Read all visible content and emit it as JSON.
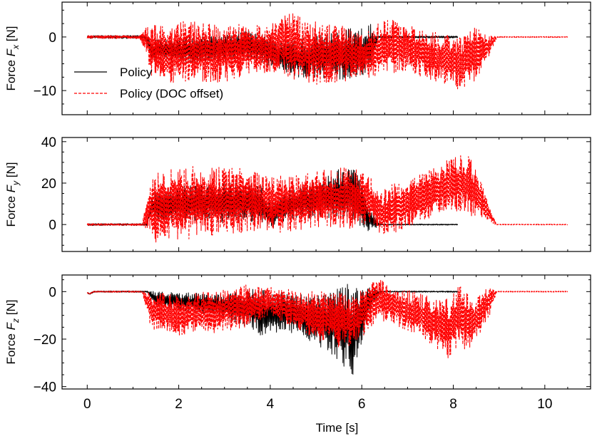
{
  "chart_data": [
    {
      "type": "line",
      "panel": "Fx",
      "ylabel": {
        "prefix": "Force ",
        "symbol": "F",
        "subscript": "x",
        "suffix": " [N]"
      },
      "ylim": [
        -14.5,
        6.5
      ],
      "yticks": [
        {
          "value": 0,
          "label": "0"
        },
        {
          "value": -10,
          "label": "−10"
        }
      ],
      "xlim": [
        -0.55,
        11.0
      ],
      "xticks": [
        0,
        2,
        4,
        6,
        8,
        10
      ],
      "legend": {
        "placement": "bottom-left"
      },
      "series": [
        {
          "name": "Policy",
          "color": "#000000",
          "style": "solid",
          "points": [
            [
              0,
              0
            ],
            [
              1.25,
              0
            ],
            [
              1.3,
              -0.5
            ],
            [
              1.4,
              -2.5
            ],
            [
              2.0,
              -2.5
            ],
            [
              3.0,
              -2.0
            ],
            [
              3.5,
              -1.5
            ],
            [
              4.0,
              -2.5
            ],
            [
              4.2,
              -3.5
            ],
            [
              4.5,
              -4.0
            ],
            [
              5.0,
              -3.5
            ],
            [
              5.5,
              -3.5
            ],
            [
              5.8,
              -3.0
            ],
            [
              6.0,
              -3.0
            ],
            [
              6.2,
              -1.5
            ],
            [
              6.35,
              0
            ],
            [
              8.1,
              0
            ]
          ],
          "amplitude": [
            [
              1.25,
              0.3
            ],
            [
              1.4,
              2.0
            ],
            [
              2.5,
              2.5
            ],
            [
              3.5,
              3.0
            ],
            [
              4.0,
              3.0
            ],
            [
              4.5,
              3.5
            ],
            [
              5.5,
              4.5
            ],
            [
              6.0,
              5.0
            ],
            [
              6.2,
              4.0
            ],
            [
              6.35,
              0.2
            ],
            [
              8.1,
              0.2
            ]
          ]
        },
        {
          "name": "Policy (DOC offset)",
          "color": "#ff0000",
          "style": "dashed",
          "points": [
            [
              0,
              0
            ],
            [
              1.15,
              0
            ],
            [
              1.3,
              -0.5
            ],
            [
              1.4,
              -2.5
            ],
            [
              2.0,
              -3.0
            ],
            [
              3.0,
              -3.0
            ],
            [
              3.5,
              -2.5
            ],
            [
              4.0,
              -2.0
            ],
            [
              4.2,
              -1.5
            ],
            [
              4.5,
              -2.0
            ],
            [
              5.0,
              -3.0
            ],
            [
              5.5,
              -3.0
            ],
            [
              6.0,
              -3.5
            ],
            [
              6.3,
              -3.0
            ],
            [
              6.5,
              -1.5
            ],
            [
              7.0,
              -2.0
            ],
            [
              7.5,
              -3.5
            ],
            [
              8.0,
              -4.5
            ],
            [
              8.2,
              -5.0
            ],
            [
              8.5,
              -3.0
            ],
            [
              8.8,
              -1.5
            ],
            [
              8.95,
              0
            ],
            [
              10.5,
              0
            ]
          ],
          "amplitude": [
            [
              1.15,
              0.3
            ],
            [
              1.4,
              5.0
            ],
            [
              2.0,
              6.0
            ],
            [
              3.0,
              5.5
            ],
            [
              4.0,
              4.5
            ],
            [
              4.5,
              6.5
            ],
            [
              5.5,
              5.5
            ],
            [
              6.0,
              4.0
            ],
            [
              6.5,
              5.5
            ],
            [
              7.0,
              4.5
            ],
            [
              8.0,
              5.0
            ],
            [
              8.5,
              5.0
            ],
            [
              8.95,
              0.1
            ],
            [
              10.5,
              0.1
            ]
          ]
        }
      ]
    },
    {
      "type": "line",
      "panel": "Fy",
      "ylabel": {
        "prefix": "Force ",
        "symbol": "F",
        "subscript": "y",
        "suffix": " [N]"
      },
      "ylim": [
        -13,
        42
      ],
      "yticks": [
        {
          "value": 0,
          "label": "0"
        },
        {
          "value": 20,
          "label": "20"
        },
        {
          "value": 40,
          "label": "40"
        }
      ],
      "xlim": [
        -0.55,
        11.0
      ],
      "xticks": [
        0,
        2,
        4,
        6,
        8,
        10
      ],
      "series": [
        {
          "name": "Policy",
          "color": "#000000",
          "style": "solid",
          "points": [
            [
              0,
              0
            ],
            [
              1.3,
              0
            ],
            [
              1.4,
              9
            ],
            [
              2.0,
              10
            ],
            [
              3.0,
              11
            ],
            [
              3.8,
              10
            ],
            [
              4.0,
              4
            ],
            [
              4.3,
              9
            ],
            [
              5.0,
              12
            ],
            [
              5.5,
              15
            ],
            [
              5.9,
              14
            ],
            [
              6.1,
              4
            ],
            [
              6.3,
              1
            ],
            [
              6.4,
              0
            ],
            [
              8.1,
              0
            ]
          ],
          "amplitude": [
            [
              1.3,
              0.5
            ],
            [
              1.5,
              8
            ],
            [
              3.0,
              10
            ],
            [
              3.8,
              9
            ],
            [
              4.2,
              7
            ],
            [
              5.0,
              9
            ],
            [
              5.9,
              14
            ],
            [
              6.2,
              5
            ],
            [
              6.4,
              0.3
            ],
            [
              8.1,
              0.3
            ]
          ]
        },
        {
          "name": "Policy (DOC offset)",
          "color": "#ff0000",
          "style": "dashed",
          "points": [
            [
              0,
              0
            ],
            [
              1.2,
              0
            ],
            [
              1.4,
              9
            ],
            [
              2.0,
              10
            ],
            [
              3.0,
              12
            ],
            [
              3.8,
              11
            ],
            [
              4.3,
              10
            ],
            [
              5.0,
              12
            ],
            [
              5.7,
              13
            ],
            [
              6.2,
              12
            ],
            [
              6.4,
              5
            ],
            [
              6.7,
              8
            ],
            [
              7.0,
              10
            ],
            [
              7.5,
              15
            ],
            [
              8.0,
              20
            ],
            [
              8.3,
              20
            ],
            [
              8.6,
              12
            ],
            [
              8.85,
              3
            ],
            [
              8.95,
              0
            ],
            [
              10.5,
              0
            ]
          ],
          "amplitude": [
            [
              1.2,
              0.5
            ],
            [
              1.35,
              10
            ],
            [
              1.5,
              18
            ],
            [
              3.0,
              17
            ],
            [
              3.8,
              14
            ],
            [
              4.2,
              14
            ],
            [
              5.0,
              14
            ],
            [
              5.8,
              15
            ],
            [
              6.3,
              10
            ],
            [
              6.6,
              12
            ],
            [
              7.5,
              12
            ],
            [
              8.1,
              14
            ],
            [
              8.4,
              14
            ],
            [
              8.8,
              4
            ],
            [
              8.95,
              0.2
            ],
            [
              10.5,
              0.2
            ]
          ]
        }
      ]
    },
    {
      "type": "line",
      "panel": "Fz",
      "ylabel": {
        "prefix": "Force ",
        "symbol": "F",
        "subscript": "z",
        "suffix": " [N]"
      },
      "xlabel": "Time [s]",
      "ylim": [
        -41,
        7
      ],
      "yticks": [
        {
          "value": 0,
          "label": "0"
        },
        {
          "value": -20,
          "label": "−20"
        },
        {
          "value": -40,
          "label": "−40"
        }
      ],
      "xlim": [
        -0.55,
        11.0
      ],
      "xticks": [
        {
          "value": 0,
          "label": "0"
        },
        {
          "value": 2,
          "label": "2"
        },
        {
          "value": 4,
          "label": "4"
        },
        {
          "value": 6,
          "label": "6"
        },
        {
          "value": 8,
          "label": "8"
        },
        {
          "value": 10,
          "label": "10"
        }
      ],
      "series": [
        {
          "name": "Policy",
          "color": "#000000",
          "style": "solid",
          "points": [
            [
              0,
              -0.5
            ],
            [
              0.05,
              -1
            ],
            [
              0.15,
              0
            ],
            [
              1.3,
              0
            ],
            [
              1.5,
              -3
            ],
            [
              2.5,
              -5
            ],
            [
              3.5,
              -7
            ],
            [
              4.0,
              -10
            ],
            [
              4.3,
              -8
            ],
            [
              5.0,
              -12
            ],
            [
              5.5,
              -14
            ],
            [
              5.8,
              -16
            ],
            [
              6.0,
              -10
            ],
            [
              6.2,
              -3
            ],
            [
              6.4,
              0
            ],
            [
              8.1,
              0
            ]
          ],
          "amplitude": [
            [
              1.3,
              0.3
            ],
            [
              1.5,
              3
            ],
            [
              3.0,
              5
            ],
            [
              3.8,
              10
            ],
            [
              4.2,
              8
            ],
            [
              5.0,
              10
            ],
            [
              5.8,
              20
            ],
            [
              6.1,
              8
            ],
            [
              6.4,
              0.3
            ],
            [
              8.1,
              0.3
            ]
          ]
        },
        {
          "name": "Policy (DOC offset)",
          "color": "#ff0000",
          "style": "dashed",
          "points": [
            [
              0,
              -0.5
            ],
            [
              0.05,
              -1
            ],
            [
              0.15,
              0
            ],
            [
              1.2,
              0
            ],
            [
              1.4,
              -8
            ],
            [
              2.0,
              -10
            ],
            [
              3.0,
              -8
            ],
            [
              4.0,
              -4
            ],
            [
              4.3,
              -6
            ],
            [
              5.0,
              -10
            ],
            [
              5.7,
              -12
            ],
            [
              6.1,
              -8
            ],
            [
              6.3,
              -4
            ],
            [
              6.5,
              -4
            ],
            [
              7.0,
              -8
            ],
            [
              7.5,
              -12
            ],
            [
              7.9,
              -16
            ],
            [
              8.1,
              -10
            ],
            [
              8.4,
              -14
            ],
            [
              8.7,
              -6
            ],
            [
              8.95,
              0
            ],
            [
              10.5,
              0
            ]
          ],
          "amplitude": [
            [
              1.2,
              0.3
            ],
            [
              1.4,
              8
            ],
            [
              2.5,
              9
            ],
            [
              3.5,
              9
            ],
            [
              4.0,
              6
            ],
            [
              4.5,
              8
            ],
            [
              5.5,
              12
            ],
            [
              6.1,
              10
            ],
            [
              6.6,
              8
            ],
            [
              7.5,
              10
            ],
            [
              8.0,
              14
            ],
            [
              8.4,
              12
            ],
            [
              8.8,
              6
            ],
            [
              8.95,
              0.2
            ],
            [
              10.5,
              0.2
            ]
          ]
        }
      ]
    }
  ]
}
